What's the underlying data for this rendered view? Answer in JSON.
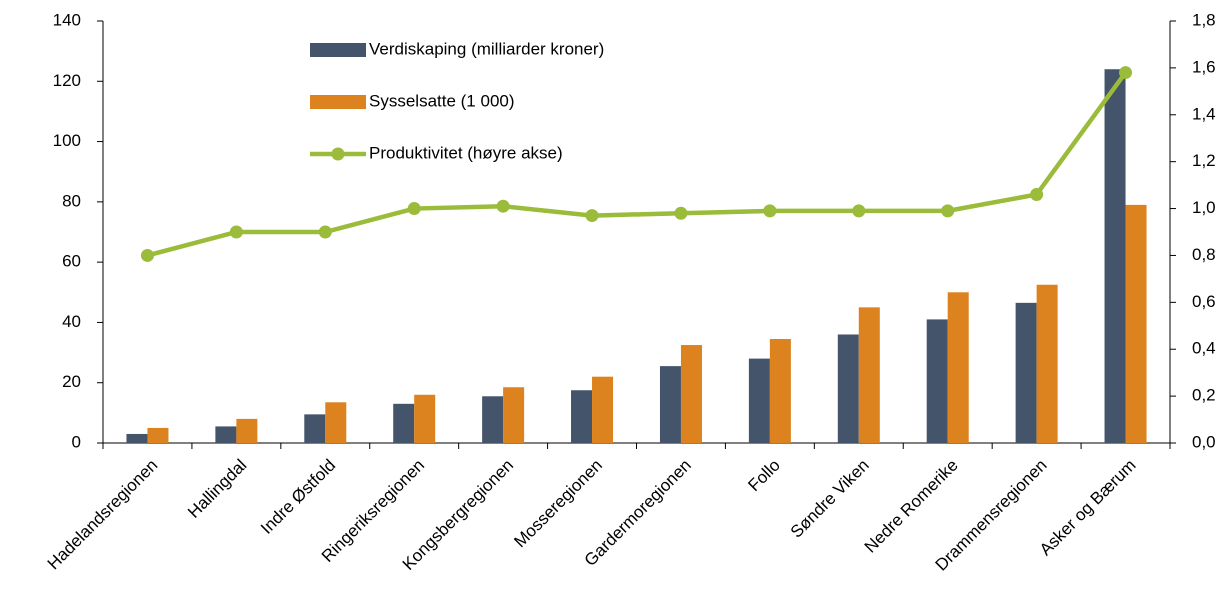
{
  "chart_data": {
    "type": "bar",
    "categories": [
      "Hadelandsregionen",
      "Hallingdal",
      "Indre Østfold",
      "Ringeriksregionen",
      "Kongsbergregionen",
      "Mosseregionen",
      "Gardermoregionen",
      "Follo",
      "Søndre Viken",
      "Nedre Romerike",
      "Drammensregionen",
      "Asker og Bærum"
    ],
    "series": [
      {
        "name": "Verdiskaping (milliarder kroner)",
        "color": "#44546a",
        "values": [
          3,
          5.5,
          9.5,
          13,
          15.5,
          17.5,
          25.5,
          28,
          36,
          41,
          46.5,
          124
        ]
      },
      {
        "name": "Sysselsatte (1 000)",
        "color": "#dc821e",
        "values": [
          5,
          8,
          13.5,
          16,
          18.5,
          22,
          32.5,
          34.5,
          45,
          50,
          52.5,
          79
        ]
      },
      {
        "name": "Produktivitet (høyre akse)",
        "color": "#9bbb3b",
        "type": "line",
        "axis": "y2",
        "values": [
          0.8,
          0.9,
          0.9,
          1.0,
          1.01,
          0.97,
          0.98,
          0.99,
          0.99,
          0.99,
          1.06,
          1.58
        ]
      }
    ],
    "ylim": [
      0,
      140
    ],
    "yticks": [
      0,
      20,
      40,
      60,
      80,
      100,
      120,
      140
    ],
    "y2lim": [
      0,
      1.8
    ],
    "y2ticks": [
      {
        "value": 0,
        "label": "0,0"
      },
      {
        "value": 0.2,
        "label": "0,2"
      },
      {
        "value": 0.4,
        "label": "0,4"
      },
      {
        "value": 0.6,
        "label": "0,6"
      },
      {
        "value": 0.8,
        "label": "0,8"
      },
      {
        "value": 1.0,
        "label": "1,0"
      },
      {
        "value": 1.2,
        "label": "1,2"
      },
      {
        "value": 1.4,
        "label": "1,4"
      },
      {
        "value": 1.6,
        "label": "1,6"
      },
      {
        "value": 1.8,
        "label": "1,8"
      }
    ],
    "legend": "top-left"
  }
}
